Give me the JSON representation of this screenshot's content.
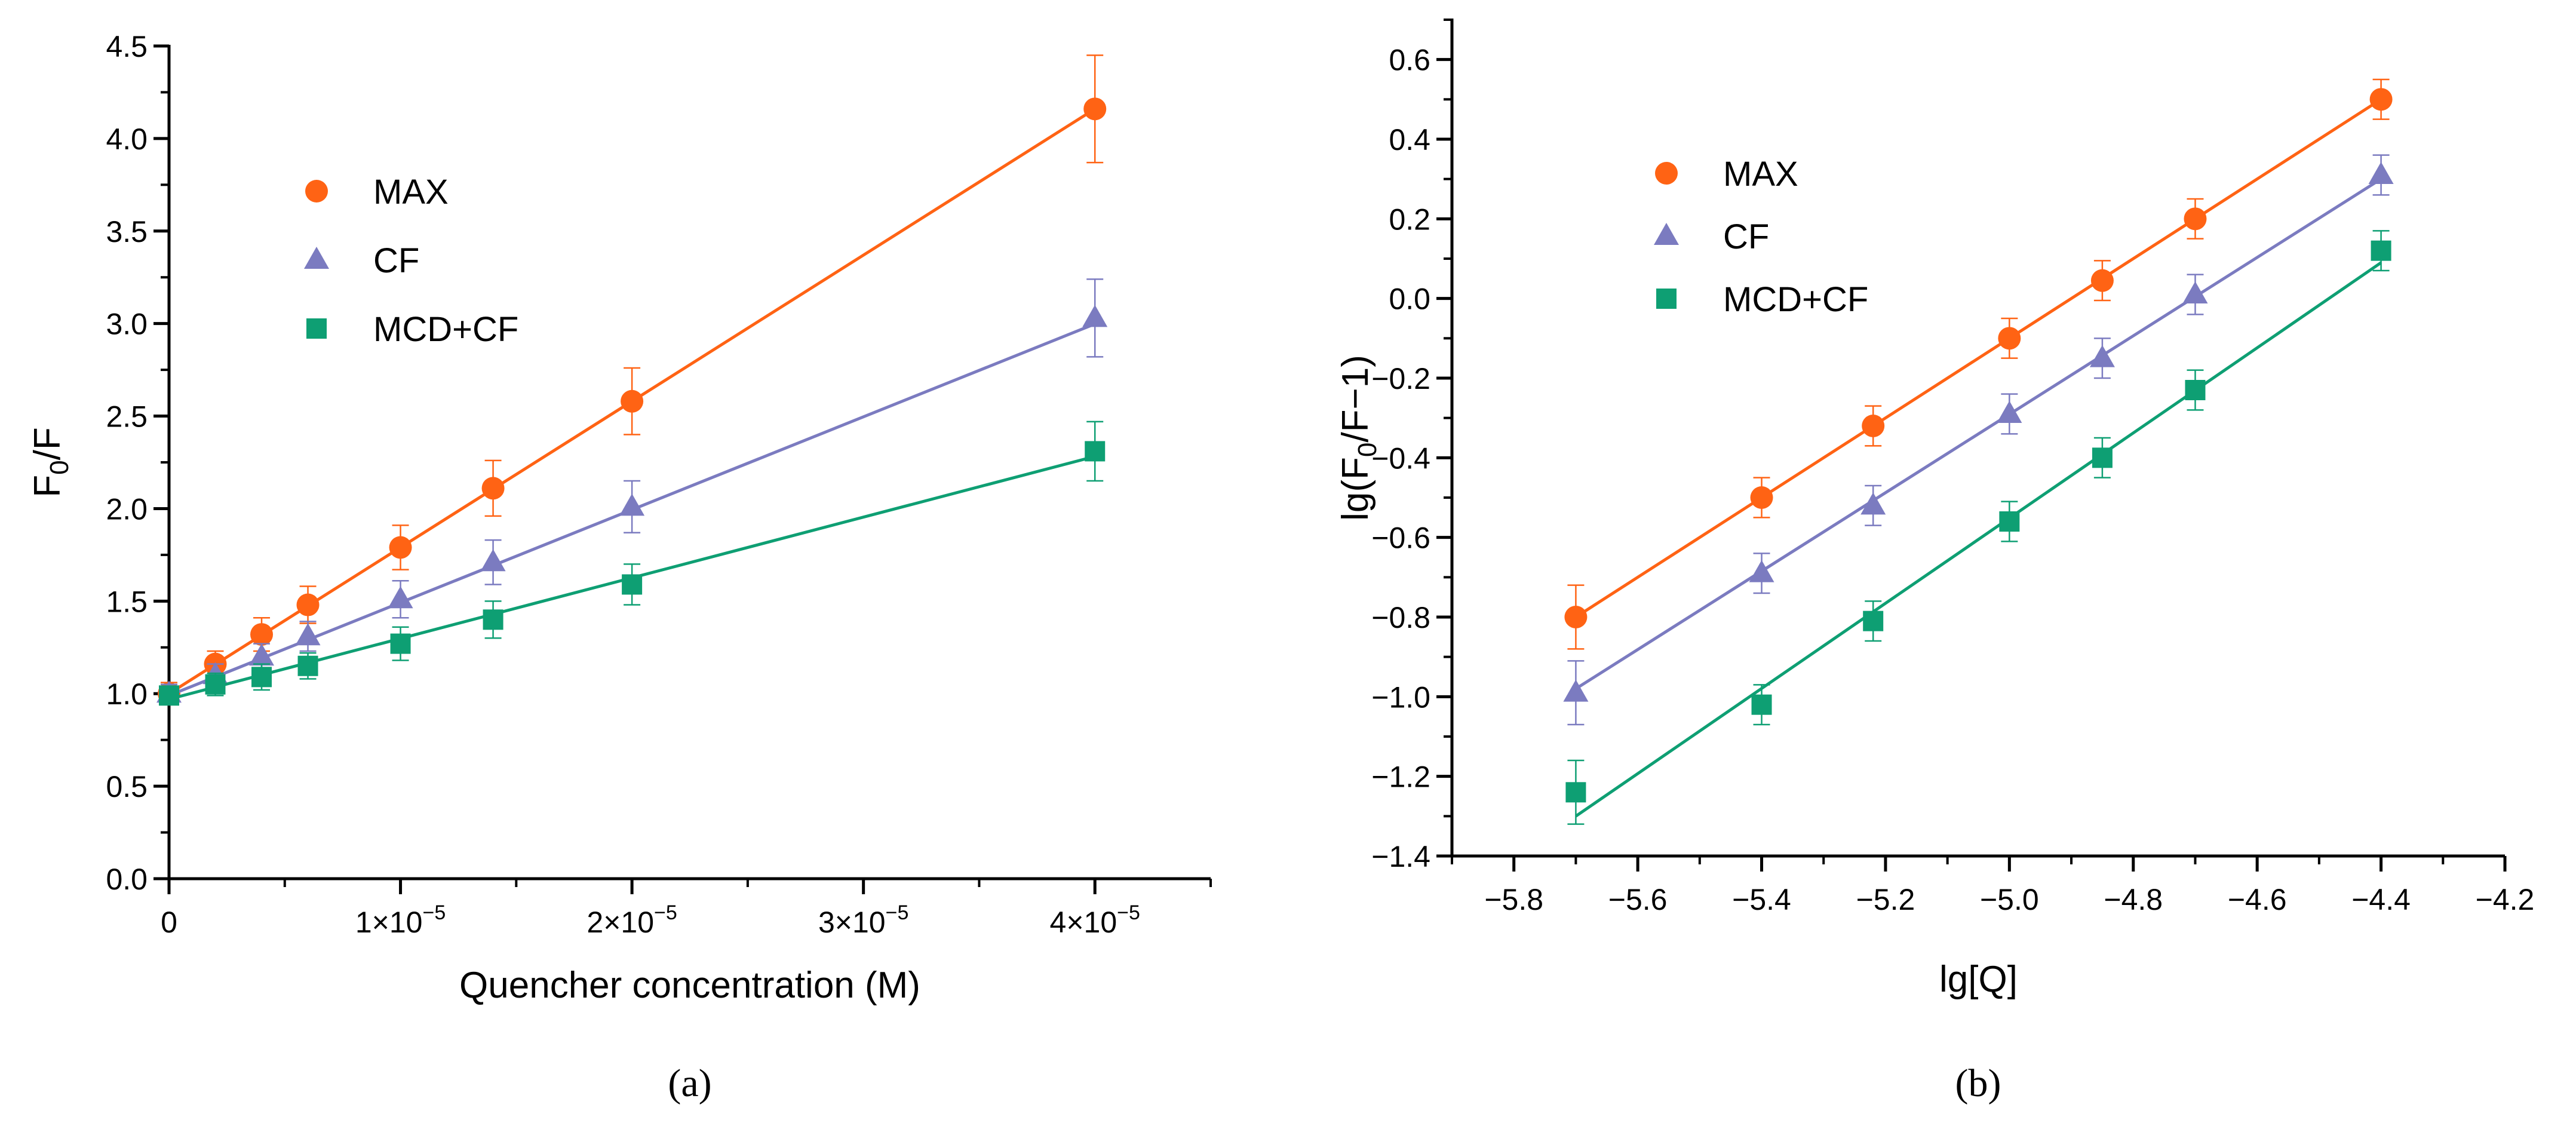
{
  "colors": {
    "MAX": "#FF6314",
    "CF": "#7B7BC0",
    "MCD+CF": "#0E9F73",
    "axis": "#000000"
  },
  "chart_data": [
    {
      "type": "scatter",
      "panel_label": "(a)",
      "xlabel": "Quencher concentration (M)",
      "ylabel_main": "F",
      "ylabel_sub": "0",
      "ylabel_rest": "/F",
      "xlim": [
        0,
        4.5e-05
      ],
      "ylim": [
        0,
        4.5
      ],
      "xticks": [
        0,
        1e-05,
        2e-05,
        3e-05,
        4e-05
      ],
      "xtick_labels": [
        {
          "base": "0",
          "exp": ""
        },
        {
          "base": "1×10",
          "exp": "−5"
        },
        {
          "base": "2×10",
          "exp": "−5"
        },
        {
          "base": "3×10",
          "exp": "−5"
        },
        {
          "base": "4×10",
          "exp": "−5"
        }
      ],
      "yticks": [
        0,
        0.5,
        1,
        1.5,
        2,
        2.5,
        3,
        3.5,
        4,
        4.5
      ],
      "ytick_labels": [
        "0.0",
        "0.5",
        "1.0",
        "1.5",
        "2.0",
        "2.5",
        "3.0",
        "3.5",
        "4.0",
        "4.5"
      ],
      "x_minor_step": 5e-06,
      "y_minor_step": 0.25,
      "legend": [
        "MAX",
        "CF",
        "MCD+CF"
      ],
      "legend_placement": "upper-left",
      "x": [
        0,
        2e-06,
        4e-06,
        6e-06,
        1e-05,
        1.4e-05,
        2e-05,
        4e-05
      ],
      "series": [
        {
          "name": "MAX",
          "marker": "circle",
          "values": [
            1.0,
            1.16,
            1.32,
            1.48,
            1.79,
            2.11,
            2.58,
            4.16
          ],
          "errors": [
            0.06,
            0.07,
            0.09,
            0.1,
            0.12,
            0.15,
            0.18,
            0.29
          ],
          "fit": {
            "intercept": 1.0,
            "slope": 79000
          }
        },
        {
          "name": "CF",
          "marker": "triangle",
          "values": [
            1.0,
            1.1,
            1.2,
            1.31,
            1.51,
            1.71,
            2.01,
            3.03
          ],
          "errors": [
            0.05,
            0.06,
            0.07,
            0.08,
            0.1,
            0.12,
            0.14,
            0.21
          ],
          "fit": {
            "intercept": 0.99,
            "slope": 50200
          }
        },
        {
          "name": "MCD+CF",
          "marker": "square",
          "values": [
            0.99,
            1.05,
            1.09,
            1.15,
            1.27,
            1.4,
            1.59,
            2.31
          ],
          "errors": [
            0.05,
            0.06,
            0.07,
            0.07,
            0.09,
            0.1,
            0.11,
            0.16
          ],
          "fit": {
            "intercept": 0.97,
            "slope": 32800
          }
        }
      ]
    },
    {
      "type": "scatter",
      "panel_label": "(b)",
      "xlabel": "lg[Q]",
      "ylabel_main": "lg(F",
      "ylabel_sub": "0",
      "ylabel_rest": "/F−1)",
      "xlim": [
        -5.9,
        -4.2
      ],
      "ylim": [
        -1.4,
        0.7
      ],
      "xticks": [
        -5.8,
        -5.6,
        -5.4,
        -5.2,
        -5.0,
        -4.8,
        -4.6,
        -4.4,
        -4.2
      ],
      "xtick_labels": [
        {
          "base": "−5.8",
          "exp": ""
        },
        {
          "base": "−5.6",
          "exp": ""
        },
        {
          "base": "−5.4",
          "exp": ""
        },
        {
          "base": "−5.2",
          "exp": ""
        },
        {
          "base": "−5.0",
          "exp": ""
        },
        {
          "base": "−4.8",
          "exp": ""
        },
        {
          "base": "−4.6",
          "exp": ""
        },
        {
          "base": "−4.4",
          "exp": ""
        },
        {
          "base": "−4.2",
          "exp": ""
        }
      ],
      "yticks": [
        -1.4,
        -1.2,
        -1.0,
        -0.8,
        -0.6,
        -0.4,
        -0.2,
        0.0,
        0.2,
        0.4,
        0.6
      ],
      "ytick_labels": [
        "−1.4",
        "−1.2",
        "−1.0",
        "−0.8",
        "−0.6",
        "−0.4",
        "−0.2",
        "0.0",
        "0.2",
        "0.4",
        "0.6"
      ],
      "x_minor_step": 0.1,
      "y_minor_step": 0.1,
      "legend": [
        "MAX",
        "CF",
        "MCD+CF"
      ],
      "legend_placement": "upper-left",
      "x": [
        -5.7,
        -5.4,
        -5.22,
        -5.0,
        -4.85,
        -4.7,
        -4.4
      ],
      "series": [
        {
          "name": "MAX",
          "marker": "circle",
          "values": [
            -0.8,
            -0.5,
            -0.32,
            -0.1,
            0.045,
            0.2,
            0.5
          ],
          "errors": [
            0.08,
            0.05,
            0.05,
            0.05,
            0.05,
            0.05,
            0.05
          ],
          "fit": {
            "x0": -5.7,
            "y0": -0.8,
            "x1": -4.4,
            "y1": 0.5
          }
        },
        {
          "name": "CF",
          "marker": "triangle",
          "values": [
            -0.99,
            -0.69,
            -0.52,
            -0.29,
            -0.15,
            0.01,
            0.31
          ],
          "errors": [
            0.08,
            0.05,
            0.05,
            0.05,
            0.05,
            0.05,
            0.05
          ],
          "fit": {
            "x0": -5.7,
            "y0": -0.98,
            "x1": -4.4,
            "y1": 0.3
          }
        },
        {
          "name": "MCD+CF",
          "marker": "square",
          "values": [
            -1.24,
            -1.02,
            -0.81,
            -0.56,
            -0.4,
            -0.23,
            0.12
          ],
          "errors": [
            0.08,
            0.05,
            0.05,
            0.05,
            0.05,
            0.05,
            0.05
          ],
          "fit": {
            "x0": -5.7,
            "y0": -1.3,
            "x1": -4.4,
            "y1": 0.09
          }
        }
      ]
    }
  ]
}
